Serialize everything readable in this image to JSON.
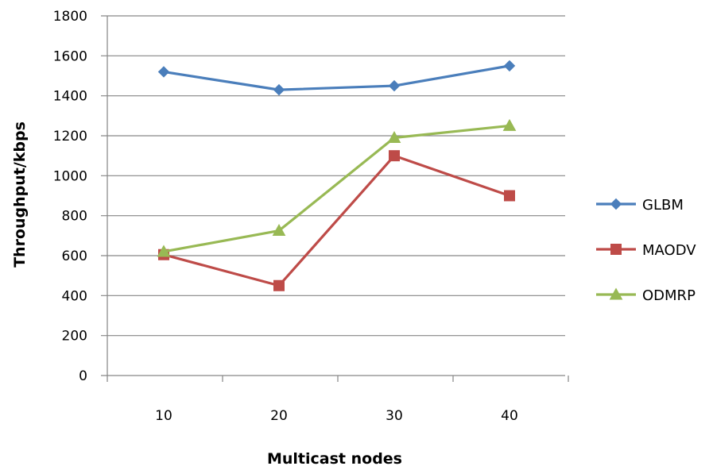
{
  "chart_data": {
    "type": "line",
    "title": "",
    "xlabel": "Multicast nodes",
    "ylabel": "Throughput/kbps",
    "categories": [
      "10",
      "20",
      "30",
      "40"
    ],
    "ylim": [
      0,
      1800
    ],
    "yticks": [
      0,
      200,
      400,
      600,
      800,
      1000,
      1200,
      1400,
      1600,
      1800
    ],
    "grid": true,
    "legend_position": "right",
    "series": [
      {
        "name": "GLBM",
        "values": [
          1520,
          1430,
          1450,
          1550
        ],
        "color": "#4a7ebb",
        "marker": "diamond"
      },
      {
        "name": "MAODV",
        "values": [
          605,
          450,
          1100,
          900
        ],
        "color": "#be4b48",
        "marker": "square"
      },
      {
        "name": "ODMRP",
        "values": [
          620,
          725,
          1190,
          1250
        ],
        "color": "#98b954",
        "marker": "triangle"
      }
    ]
  }
}
